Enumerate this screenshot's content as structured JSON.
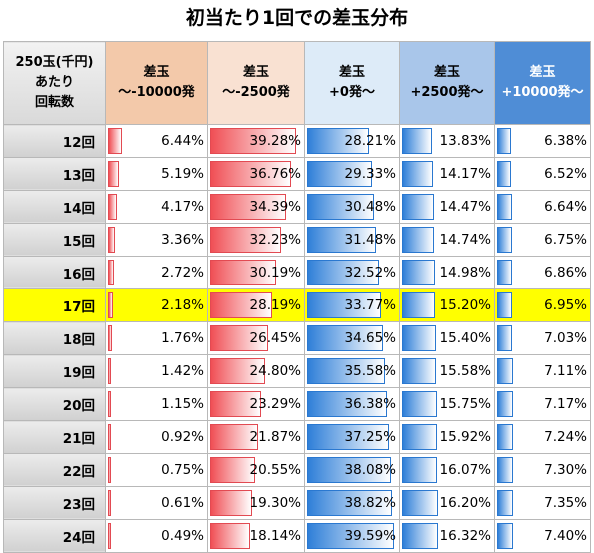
{
  "title": "初当たり1回での差玉分布",
  "header": {
    "first": [
      "250玉(千円)",
      "あたり",
      "回転数"
    ],
    "cols": [
      [
        "差玉",
        "～-10000発"
      ],
      [
        "差玉",
        "～-2500発"
      ],
      [
        "差玉",
        "+0発～"
      ],
      [
        "差玉",
        "+2500発～"
      ],
      [
        "差玉",
        "+10000発～"
      ]
    ]
  },
  "highlight_row": "17回",
  "highlight_color": "#ffff00",
  "bar_colors": {
    "loss": "#f04f55",
    "gain": "#2f7fd8"
  },
  "rows": [
    {
      "label": "12回",
      "values": [
        "6.44%",
        "39.28%",
        "28.21%",
        "13.83%",
        "6.38%"
      ]
    },
    {
      "label": "13回",
      "values": [
        "5.19%",
        "36.76%",
        "29.33%",
        "14.17%",
        "6.52%"
      ]
    },
    {
      "label": "14回",
      "values": [
        "4.17%",
        "34.39%",
        "30.48%",
        "14.47%",
        "6.64%"
      ]
    },
    {
      "label": "15回",
      "values": [
        "3.36%",
        "32.23%",
        "31.48%",
        "14.74%",
        "6.75%"
      ]
    },
    {
      "label": "16回",
      "values": [
        "2.72%",
        "30.19%",
        "32.52%",
        "14.98%",
        "6.86%"
      ]
    },
    {
      "label": "17回",
      "values": [
        "2.18%",
        "28.19%",
        "33.77%",
        "15.20%",
        "6.95%"
      ]
    },
    {
      "label": "18回",
      "values": [
        "1.76%",
        "26.45%",
        "34.65%",
        "15.40%",
        "7.03%"
      ]
    },
    {
      "label": "19回",
      "values": [
        "1.42%",
        "24.80%",
        "35.58%",
        "15.58%",
        "7.11%"
      ]
    },
    {
      "label": "20回",
      "values": [
        "1.15%",
        "23.29%",
        "36.38%",
        "15.75%",
        "7.17%"
      ]
    },
    {
      "label": "21回",
      "values": [
        "0.92%",
        "21.87%",
        "37.25%",
        "15.92%",
        "7.24%"
      ]
    },
    {
      "label": "22回",
      "values": [
        "0.75%",
        "20.55%",
        "38.08%",
        "16.07%",
        "7.30%"
      ]
    },
    {
      "label": "23回",
      "values": [
        "0.61%",
        "19.30%",
        "38.82%",
        "16.20%",
        "7.35%"
      ]
    },
    {
      "label": "24回",
      "values": [
        "0.49%",
        "18.14%",
        "39.59%",
        "16.32%",
        "7.40%"
      ]
    }
  ]
}
